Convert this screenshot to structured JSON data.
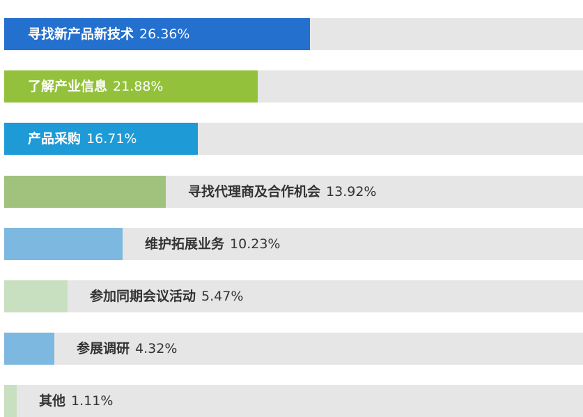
{
  "chart_data": {
    "type": "bar",
    "orientation": "horizontal",
    "xlim": [
      0,
      100
    ],
    "unit": "%",
    "grid": false,
    "legend": "none",
    "categories": [
      "寻找新产品新技术",
      "了解产业信息",
      "产品采购",
      "寻找代理商及合作机会",
      "维护拓展业务",
      "参加同期会议活动",
      "参展调研",
      "其他"
    ],
    "values": [
      26.36,
      21.88,
      16.71,
      13.92,
      10.23,
      5.47,
      4.32,
      1.11
    ],
    "value_labels": [
      "26.36%",
      "21.88%",
      "16.71%",
      "13.92%",
      "10.23%",
      "5.47%",
      "4.32%",
      "1.11%"
    ],
    "colors": [
      "#2470cf",
      "#93c13c",
      "#1e9ad6",
      "#a0c27c",
      "#7db8e0",
      "#c8e0c0",
      "#7db8e0",
      "#c8e0c0"
    ],
    "label_position": [
      "inside",
      "inside",
      "inside",
      "outside",
      "outside",
      "outside",
      "outside",
      "outside"
    ],
    "track_color": "#e6e6e6"
  }
}
